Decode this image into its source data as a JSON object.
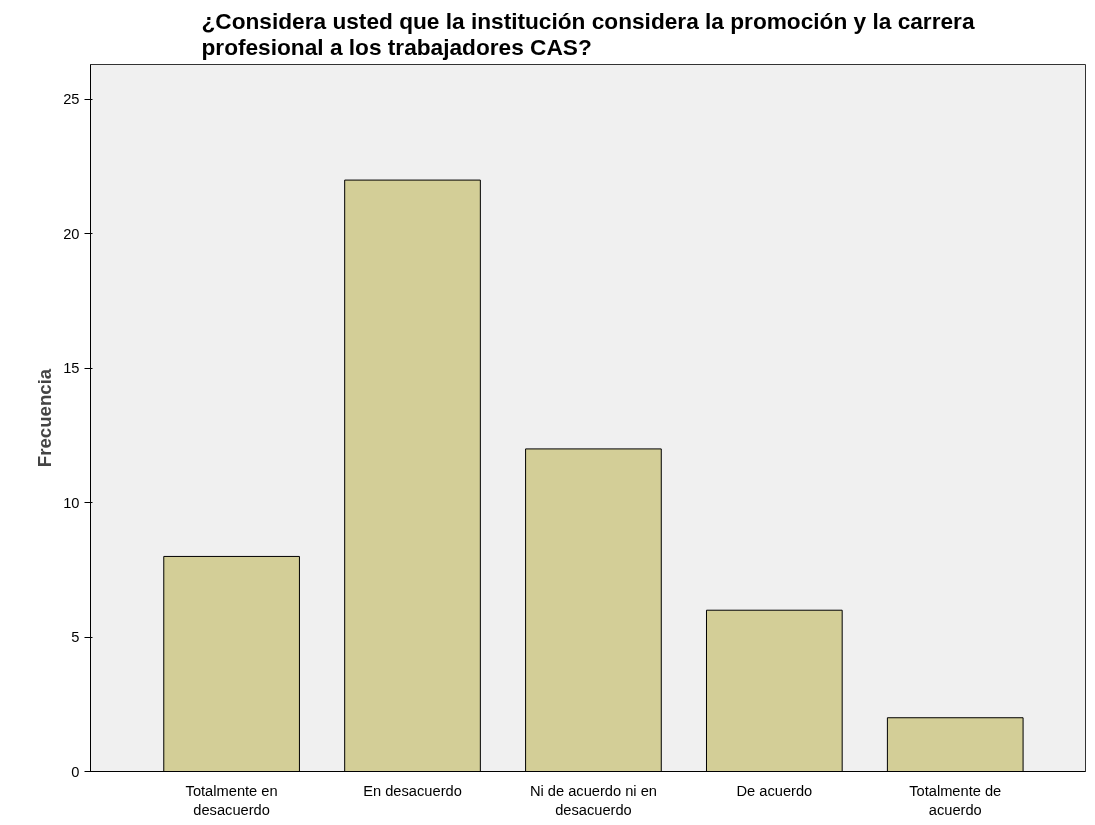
{
  "chart_data": {
    "type": "bar",
    "title": "¿Considera usted que la institución considera la promoción y la carrera profesional a los trabajadores CAS?",
    "ylabel": "Frecuencia",
    "categories": [
      "Totalmente en desacuerdo",
      "En desacuerdo",
      "Ni de acuerdo ni en desacuerdo",
      "De acuerdo",
      "Totalmente de acuerdo"
    ],
    "values": [
      8,
      22,
      12,
      6,
      2
    ],
    "color": "#d3ce97",
    "ylim": [
      0,
      26.3
    ],
    "yticks": [
      0,
      5,
      10,
      15,
      20,
      25
    ],
    "grid": false
  }
}
